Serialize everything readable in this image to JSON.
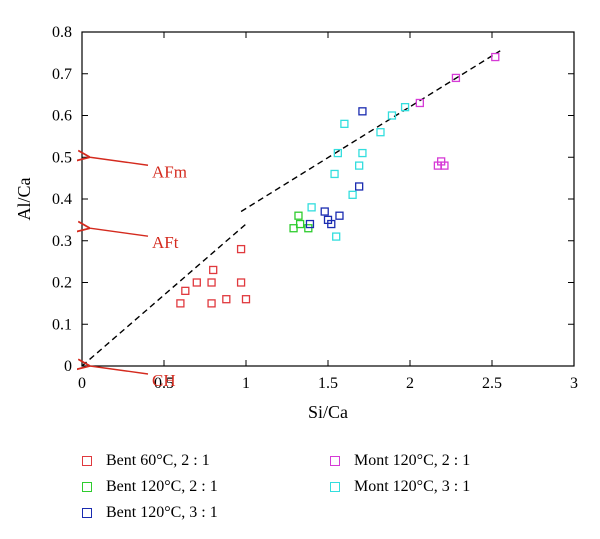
{
  "chart_data": {
    "type": "scatter",
    "xlabel": "Si/Ca",
    "ylabel": "Al/Ca",
    "xlim": [
      0,
      3
    ],
    "ylim": [
      0,
      0.8
    ],
    "xticks": [
      "0",
      "0.5",
      "1",
      "1.5",
      "2",
      "2.5",
      "3"
    ],
    "yticks": [
      "0",
      "0.1",
      "0.2",
      "0.3",
      "0.4",
      "0.5",
      "0.6",
      "0.7",
      "0.8"
    ],
    "grid": false,
    "legend_position": "below",
    "series": [
      {
        "name": "Bent 60°C, 2 : 1",
        "color": "#e0393e",
        "points": [
          [
            0.6,
            0.15
          ],
          [
            0.63,
            0.18
          ],
          [
            0.7,
            0.2
          ],
          [
            0.79,
            0.2
          ],
          [
            0.8,
            0.23
          ],
          [
            0.79,
            0.15
          ],
          [
            0.88,
            0.16
          ],
          [
            0.97,
            0.28
          ],
          [
            0.97,
            0.2
          ],
          [
            1.0,
            0.16
          ]
        ]
      },
      {
        "name": "Bent 120°C, 2 : 1",
        "color": "#2ecc2e",
        "points": [
          [
            1.29,
            0.33
          ],
          [
            1.32,
            0.36
          ],
          [
            1.33,
            0.34
          ],
          [
            1.38,
            0.33
          ]
        ]
      },
      {
        "name": "Bent 120°C, 3 : 1",
        "color": "#1a2bb0",
        "points": [
          [
            1.39,
            0.34
          ],
          [
            1.48,
            0.37
          ],
          [
            1.5,
            0.35
          ],
          [
            1.52,
            0.34
          ],
          [
            1.57,
            0.36
          ],
          [
            1.69,
            0.43
          ],
          [
            1.71,
            0.61
          ]
        ]
      },
      {
        "name": "Mont 120°C, 2 : 1",
        "color": "#d63ad6",
        "points": [
          [
            2.06,
            0.63
          ],
          [
            2.17,
            0.48
          ],
          [
            2.19,
            0.49
          ],
          [
            2.21,
            0.48
          ],
          [
            2.28,
            0.69
          ],
          [
            2.52,
            0.74
          ]
        ]
      },
      {
        "name": "Mont 120°C, 3 : 1",
        "color": "#33dede",
        "points": [
          [
            1.4,
            0.38
          ],
          [
            1.54,
            0.46
          ],
          [
            1.55,
            0.31
          ],
          [
            1.56,
            0.51
          ],
          [
            1.6,
            0.58
          ],
          [
            1.65,
            0.41
          ],
          [
            1.69,
            0.48
          ],
          [
            1.71,
            0.51
          ],
          [
            1.82,
            0.56
          ],
          [
            1.89,
            0.6
          ],
          [
            1.97,
            0.62
          ]
        ]
      }
    ],
    "trend_lines": [
      {
        "style": "dashed",
        "color": "#000000",
        "points": [
          [
            0,
            0
          ],
          [
            1.0,
            0.34
          ]
        ]
      },
      {
        "style": "dashed",
        "color": "#000000",
        "points": [
          [
            0.97,
            0.37
          ],
          [
            2.55,
            0.755
          ]
        ]
      }
    ],
    "annotations": [
      {
        "text": "AFm",
        "y": 0.5,
        "color": "#d42a1e"
      },
      {
        "text": "AFt",
        "y": 0.33,
        "color": "#d42a1e"
      },
      {
        "text": "CH",
        "y": 0.0,
        "color": "#d42a1e"
      }
    ]
  }
}
